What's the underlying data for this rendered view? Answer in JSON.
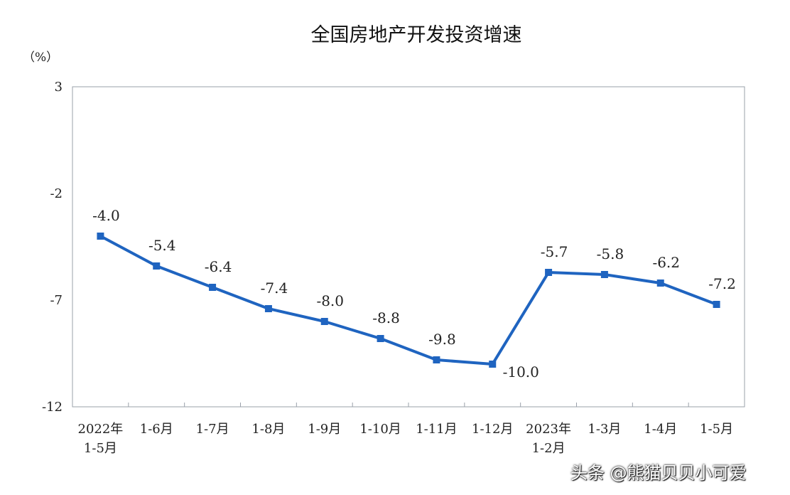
{
  "chart_data": {
    "type": "line",
    "title": "全国房地产开发投资增速",
    "unit_label": "（%）",
    "ylim": [
      -12,
      3
    ],
    "yticks": [
      3,
      -2,
      -7,
      -12
    ],
    "ytick_labels": [
      "3",
      "-2",
      "-7",
      "-12"
    ],
    "categories": [
      [
        "2022年",
        "1-5月"
      ],
      [
        "1-6月"
      ],
      [
        "1-7月"
      ],
      [
        "1-8月"
      ],
      [
        "1-9月"
      ],
      [
        "1-10月"
      ],
      [
        "1-11月"
      ],
      [
        "1-12月"
      ],
      [
        "2023年",
        "1-2月"
      ],
      [
        "1-3月"
      ],
      [
        "1-4月"
      ],
      [
        "1-5月"
      ]
    ],
    "series": [
      {
        "values": [
          -4.0,
          -5.4,
          -6.4,
          -7.4,
          -8.0,
          -8.8,
          -9.8,
          -10.0,
          -5.7,
          -5.8,
          -6.2,
          -7.2
        ],
        "labels": [
          "-4.0",
          "-5.4",
          "-6.4",
          "-7.4",
          "-8.0",
          "-8.8",
          "-9.8",
          "-10.0",
          "-5.7",
          "-5.8",
          "-6.2",
          "-7.2"
        ],
        "color": "#1f64c0"
      }
    ],
    "grid": false,
    "legend": "none"
  },
  "watermark": "头条 @熊猫贝贝小可爱"
}
